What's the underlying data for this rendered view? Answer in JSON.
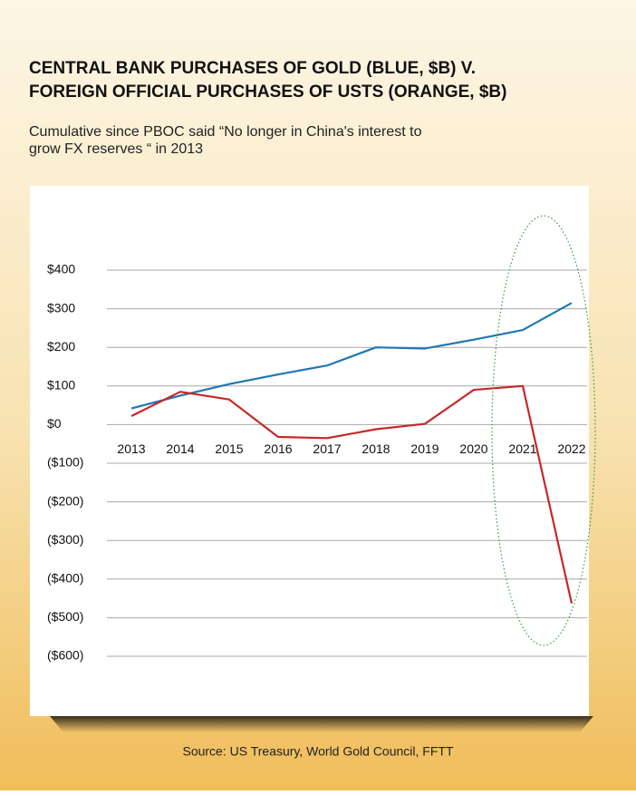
{
  "chart_data": {
    "type": "line",
    "title": [
      "CENTRAL BANK PURCHASES OF GOLD (BLUE, $B) V.",
      "FOREIGN OFFICIAL PURCHASES OF USTS (ORANGE, $B)"
    ],
    "subtitle": [
      "Cumulative since PBOC said “No longer in China's interest to",
      "grow FX reserves “ in 2013"
    ],
    "source": "Source: US Treasury, World Gold Council, FFTT",
    "categories": [
      "2013",
      "2014",
      "2015",
      "2016",
      "2017",
      "2018",
      "2019",
      "2020",
      "2021",
      "2022"
    ],
    "series": [
      {
        "color": "#1f77b4",
        "values": [
          42,
          75,
          105,
          130,
          153,
          200,
          197,
          220,
          245,
          315
        ]
      },
      {
        "color": "#c62828",
        "values": [
          22,
          85,
          65,
          -32,
          -35,
          -12,
          2,
          90,
          100,
          -463
        ]
      }
    ],
    "ylim": [
      -600,
      400
    ],
    "yticks": [
      {
        "value": 400,
        "label": "$400"
      },
      {
        "value": 300,
        "label": "$300"
      },
      {
        "value": 200,
        "label": "$200"
      },
      {
        "value": 100,
        "label": "$100"
      },
      {
        "value": 0,
        "label": "$0"
      },
      {
        "value": -100,
        "label": "($100)"
      },
      {
        "value": -200,
        "label": "($200)"
      },
      {
        "value": -300,
        "label": "($300)"
      },
      {
        "value": -400,
        "label": "($400)"
      },
      {
        "value": -500,
        "label": "($500)"
      },
      {
        "value": -600,
        "label": "($600)"
      }
    ],
    "grid": true
  }
}
